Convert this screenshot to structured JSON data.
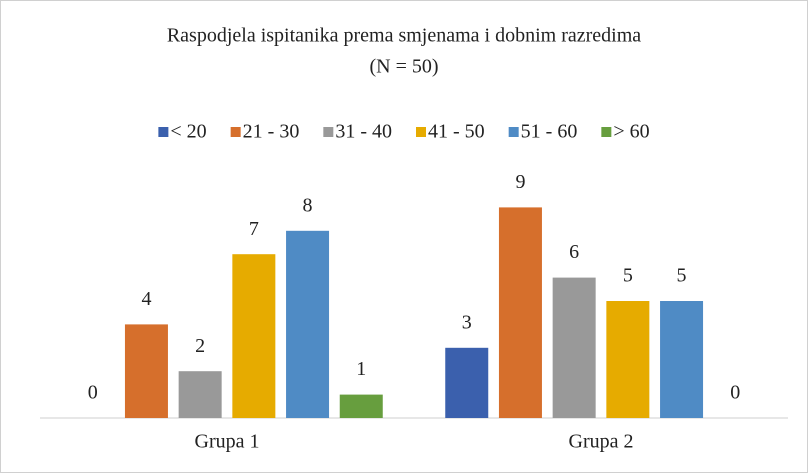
{
  "chart_data": {
    "type": "bar",
    "title": "Raspodjela ispitanika prema smjenama i dobnim razredima",
    "subtitle": "(N = 50)",
    "categories": [
      "Grupa 1",
      "Grupa 2"
    ],
    "series": [
      {
        "name": "< 20",
        "color": "#3b60ad",
        "values": [
          0,
          3
        ]
      },
      {
        "name": "21 - 30",
        "color": "#d66f2c",
        "values": [
          4,
          9
        ]
      },
      {
        "name": "31 - 40",
        "color": "#999999",
        "values": [
          2,
          6
        ]
      },
      {
        "name": "41 - 50",
        "color": "#e6ab00",
        "values": [
          7,
          5
        ]
      },
      {
        "name": "51 - 60",
        "color": "#4f8bc5",
        "values": [
          8,
          5
        ]
      },
      {
        "name": "> 60",
        "color": "#679e3e",
        "values": [
          1,
          0
        ]
      }
    ],
    "legend": "top"
  }
}
